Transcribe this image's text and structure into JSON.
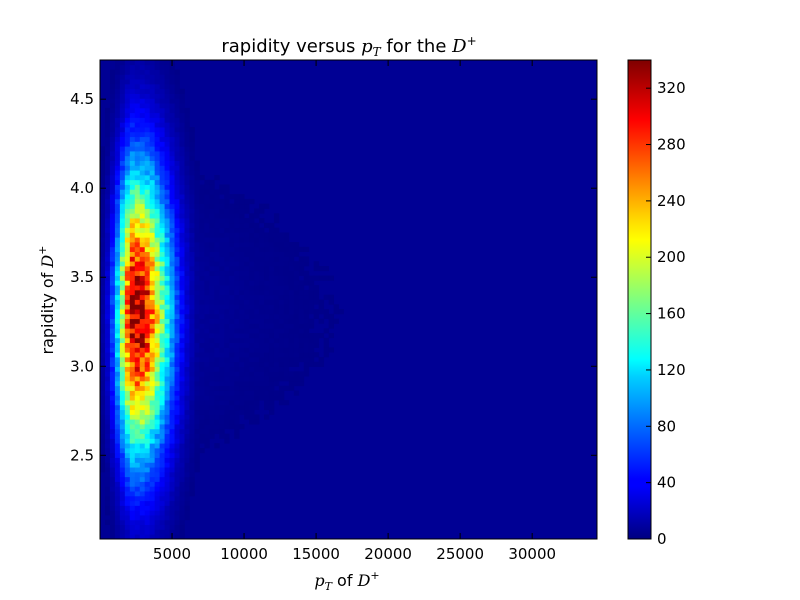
{
  "chart_data": {
    "type": "heatmap",
    "title": {
      "prefix": "rapidity versus ",
      "var": "p",
      "var_sub": "T",
      "middle": " for the ",
      "particle": "D",
      "particle_sup": "+"
    },
    "xlabel": {
      "var": "p",
      "var_sub": "T",
      "middle": " of ",
      "particle": "D",
      "particle_sup": "+"
    },
    "ylabel": {
      "prefix": "rapidity of ",
      "particle": "D",
      "particle_sup": "+"
    },
    "xlim": [
      0,
      34500
    ],
    "ylim": [
      2.03,
      4.72
    ],
    "x_ticks": [
      5000,
      10000,
      15000,
      20000,
      25000,
      30000
    ],
    "x_tick_labels": [
      "5000",
      "10000",
      "15000",
      "20000",
      "25000",
      "30000"
    ],
    "y_ticks": [
      2.5,
      3.0,
      3.5,
      4.0,
      4.5
    ],
    "y_tick_labels": [
      "2.5",
      "3.0",
      "3.5",
      "4.0",
      "4.5"
    ],
    "colorbar": {
      "min": 0,
      "max": 340,
      "ticks": [
        0,
        40,
        80,
        120,
        160,
        200,
        240,
        280,
        320
      ],
      "tick_labels": [
        "0",
        "40",
        "80",
        "120",
        "160",
        "200",
        "240",
        "280",
        "320"
      ],
      "colormap": "jet"
    },
    "bins": {
      "nx": 100,
      "ny": 100
    },
    "distribution": {
      "description_values": "peak counts about 330 near pT 2500 and rapidity 3.3",
      "peak_x": 2500,
      "peak_y": 3.3,
      "peak_value": 330,
      "sigma_x_low": 900,
      "sigma_x_high": 1600,
      "sigma_y": 0.55,
      "tail_decay_x": 9000
    },
    "grid": false
  }
}
